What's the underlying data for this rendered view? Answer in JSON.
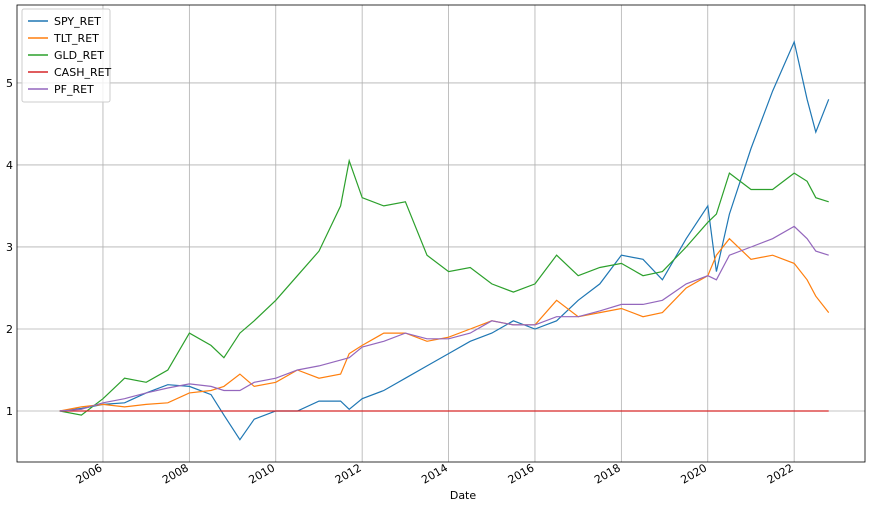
{
  "chart_data": {
    "type": "line",
    "xlabel": "Date",
    "x": [
      2005,
      2005.5,
      2006,
      2006.5,
      2007,
      2007.5,
      2008,
      2008.5,
      2008.8,
      2009.17,
      2009.5,
      2010,
      2010.5,
      2011,
      2011.5,
      2011.7,
      2012,
      2012.5,
      2013,
      2013.5,
      2014,
      2014.5,
      2015,
      2015.5,
      2016,
      2016.5,
      2017,
      2017.5,
      2018,
      2018.5,
      2018.95,
      2019.5,
      2020,
      2020.2,
      2020.5,
      2021,
      2021.5,
      2022,
      2022.3,
      2022.5,
      2022.8
    ],
    "series": [
      {
        "name": "SPY_RET",
        "color": "#1f77b4",
        "values": [
          1.0,
          1.03,
          1.08,
          1.1,
          1.22,
          1.32,
          1.3,
          1.2,
          0.95,
          0.65,
          0.9,
          1.0,
          1.0,
          1.12,
          1.12,
          1.02,
          1.15,
          1.25,
          1.4,
          1.55,
          1.7,
          1.85,
          1.95,
          2.1,
          2.0,
          2.1,
          2.35,
          2.55,
          2.9,
          2.85,
          2.6,
          3.1,
          3.5,
          2.7,
          3.4,
          4.2,
          4.9,
          5.5,
          4.8,
          4.4,
          4.8
        ]
      },
      {
        "name": "TLT_RET",
        "color": "#ff7f0e",
        "values": [
          1.0,
          1.05,
          1.08,
          1.05,
          1.08,
          1.1,
          1.22,
          1.25,
          1.3,
          1.45,
          1.3,
          1.35,
          1.5,
          1.4,
          1.45,
          1.7,
          1.8,
          1.95,
          1.95,
          1.85,
          1.9,
          2.0,
          2.1,
          2.05,
          2.05,
          2.35,
          2.15,
          2.2,
          2.25,
          2.15,
          2.2,
          2.5,
          2.65,
          2.9,
          3.1,
          2.85,
          2.9,
          2.8,
          2.6,
          2.4,
          2.2
        ]
      },
      {
        "name": "GLD_RET",
        "color": "#2ca02c",
        "values": [
          1.0,
          0.95,
          1.15,
          1.4,
          1.35,
          1.5,
          1.95,
          1.8,
          1.65,
          1.95,
          2.1,
          2.35,
          2.65,
          2.95,
          3.5,
          4.05,
          3.6,
          3.5,
          3.55,
          2.9,
          2.7,
          2.75,
          2.55,
          2.45,
          2.55,
          2.9,
          2.65,
          2.75,
          2.8,
          2.65,
          2.7,
          3.0,
          3.3,
          3.4,
          3.9,
          3.7,
          3.7,
          3.9,
          3.8,
          3.6,
          3.55
        ]
      },
      {
        "name": "CASH_RET",
        "color": "#d62728",
        "values": [
          1,
          1,
          1,
          1,
          1,
          1,
          1,
          1,
          1,
          1,
          1,
          1,
          1,
          1,
          1,
          1,
          1,
          1,
          1,
          1,
          1,
          1,
          1,
          1,
          1,
          1,
          1,
          1,
          1,
          1,
          1,
          1,
          1,
          1,
          1,
          1,
          1,
          1,
          1,
          1,
          1
        ]
      },
      {
        "name": "PF_RET",
        "color": "#9467bd",
        "values": [
          1.0,
          1.02,
          1.1,
          1.15,
          1.22,
          1.28,
          1.33,
          1.3,
          1.25,
          1.25,
          1.35,
          1.4,
          1.5,
          1.55,
          1.62,
          1.65,
          1.78,
          1.85,
          1.95,
          1.88,
          1.88,
          1.95,
          2.1,
          2.05,
          2.05,
          2.15,
          2.15,
          2.22,
          2.3,
          2.3,
          2.35,
          2.55,
          2.65,
          2.6,
          2.9,
          3.0,
          3.1,
          3.25,
          3.1,
          2.95,
          2.9
        ]
      }
    ],
    "xlim": [
      2004.01,
      2023.64
    ],
    "xticks": [
      2006,
      2008,
      2010,
      2012,
      2014,
      2016,
      2018,
      2020,
      2022
    ],
    "ylim": [
      0.378,
      5.95
    ],
    "yticks": [
      1,
      2,
      3,
      4,
      5
    ],
    "grid": true,
    "legend": "upper-left"
  }
}
